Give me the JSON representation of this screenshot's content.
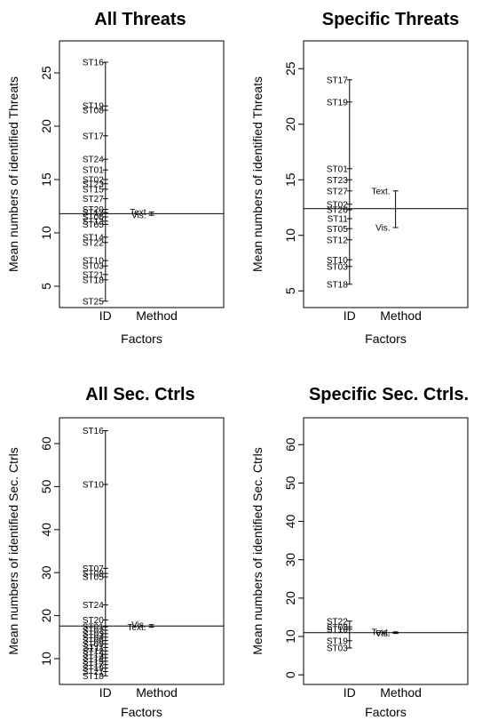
{
  "chart_data": [
    {
      "type": "factor-plot",
      "title": "All Threats",
      "xlabel": "Factors",
      "ylabel": "Mean numbers of identified Threats",
      "categories": [
        "ID",
        "Method"
      ],
      "ylim": [
        3,
        28
      ],
      "yticks": [
        5,
        10,
        15,
        20,
        25
      ],
      "grand_mean": 11.8,
      "factors": [
        {
          "name": "ID",
          "levels": [
            {
              "label": "ST16",
              "value": 26.0
            },
            {
              "label": "ST19",
              "value": 21.9
            },
            {
              "label": "ST08",
              "value": 21.5
            },
            {
              "label": "ST17",
              "value": 19.1
            },
            {
              "label": "ST24",
              "value": 16.9
            },
            {
              "label": "ST01",
              "value": 15.9
            },
            {
              "label": "ST02",
              "value": 15.0
            },
            {
              "label": "ST23",
              "value": 14.6
            },
            {
              "label": "ST15",
              "value": 14.1
            },
            {
              "label": "ST27",
              "value": 13.2
            },
            {
              "label": "ST20",
              "value": 12.2
            },
            {
              "label": "ST12",
              "value": 11.9
            },
            {
              "label": "ST06",
              "value": 11.5
            },
            {
              "label": "ST13",
              "value": 11.1
            },
            {
              "label": "ST05",
              "value": 10.8
            },
            {
              "label": "ST14",
              "value": 9.6
            },
            {
              "label": "ST22",
              "value": 9.1
            },
            {
              "label": "ST10",
              "value": 7.4
            },
            {
              "label": "ST03",
              "value": 6.9
            },
            {
              "label": "ST21",
              "value": 6.1
            },
            {
              "label": "ST18",
              "value": 5.6
            },
            {
              "label": "ST25",
              "value": 3.6
            }
          ]
        },
        {
          "name": "Method",
          "levels": [
            {
              "label": "Text",
              "value": 11.95
            },
            {
              "label": "Vis.",
              "value": 11.65
            }
          ]
        }
      ]
    },
    {
      "type": "factor-plot",
      "title": "Specific Threats",
      "xlabel": "Factors",
      "ylabel": "Mean numbers of identified Threats",
      "categories": [
        "ID",
        "Method"
      ],
      "ylim": [
        3.5,
        27.5
      ],
      "yticks": [
        5,
        10,
        15,
        20,
        25
      ],
      "grand_mean": 12.4,
      "factors": [
        {
          "name": "ID",
          "levels": [
            {
              "label": "ST17",
              "value": 24.0
            },
            {
              "label": "ST19",
              "value": 22.0
            },
            {
              "label": "ST01",
              "value": 16.0
            },
            {
              "label": "ST23",
              "value": 15.0
            },
            {
              "label": "ST27",
              "value": 14.0
            },
            {
              "label": "ST02",
              "value": 12.8
            },
            {
              "label": "ST26",
              "value": 12.3
            },
            {
              "label": "ST11",
              "value": 11.5
            },
            {
              "label": "ST05",
              "value": 10.6
            },
            {
              "label": "ST12",
              "value": 9.6
            },
            {
              "label": "ST10",
              "value": 7.8
            },
            {
              "label": "ST03",
              "value": 7.2
            },
            {
              "label": "ST18",
              "value": 5.6
            }
          ]
        },
        {
          "name": "Method",
          "levels": [
            {
              "label": "Text.",
              "value": 14.0
            },
            {
              "label": "Vis.",
              "value": 10.7
            }
          ]
        }
      ]
    },
    {
      "type": "factor-plot",
      "title": "All Sec. Ctrls",
      "xlabel": "Factors",
      "ylabel": "Mean numbers of identified Sec. Ctrls",
      "categories": [
        "ID",
        "Method"
      ],
      "ylim": [
        4,
        66
      ],
      "yticks": [
        10,
        20,
        30,
        40,
        50,
        60
      ],
      "grand_mean": 17.6,
      "factors": [
        {
          "name": "ID",
          "levels": [
            {
              "label": "ST16",
              "value": 63.0
            },
            {
              "label": "ST10",
              "value": 50.5
            },
            {
              "label": "ST07",
              "value": 31.0
            },
            {
              "label": "ST08",
              "value": 29.8
            },
            {
              "label": "ST05",
              "value": 29.0
            },
            {
              "label": "ST24",
              "value": 22.5
            },
            {
              "label": "ST20",
              "value": 19.0
            },
            {
              "label": "ST01",
              "value": 17.4
            },
            {
              "label": "ST02",
              "value": 16.6
            },
            {
              "label": "ST03",
              "value": 15.8
            },
            {
              "label": "ST04",
              "value": 15.0
            },
            {
              "label": "ST06",
              "value": 14.2
            },
            {
              "label": "ST09",
              "value": 13.4
            },
            {
              "label": "ST11",
              "value": 12.6
            },
            {
              "label": "ST12",
              "value": 11.8
            },
            {
              "label": "ST13",
              "value": 11.0
            },
            {
              "label": "ST14",
              "value": 10.2
            },
            {
              "label": "ST15",
              "value": 9.4
            },
            {
              "label": "ST17",
              "value": 8.6
            },
            {
              "label": "ST19",
              "value": 7.8
            },
            {
              "label": "ST21",
              "value": 7.0
            },
            {
              "label": "ST18",
              "value": 6.0
            }
          ]
        },
        {
          "name": "Method",
          "levels": [
            {
              "label": "Vis.",
              "value": 17.9
            },
            {
              "label": "Text.",
              "value": 17.3
            }
          ]
        }
      ]
    },
    {
      "type": "factor-plot",
      "title": "Specific Sec. Ctrls.",
      "xlabel": "Factors",
      "ylabel": "Mean numbers of identified Sec. Ctrls",
      "categories": [
        "ID",
        "Method"
      ],
      "ylim": [
        -2.5,
        67
      ],
      "yticks": [
        0,
        10,
        20,
        30,
        40,
        50,
        60
      ],
      "grand_mean": 11.0,
      "factors": [
        {
          "name": "ID",
          "levels": [
            {
              "label": "ST22",
              "value": 14.0
            },
            {
              "label": "ST08",
              "value": 12.5
            },
            {
              "label": "ST16",
              "value": 11.9
            },
            {
              "label": "ST19",
              "value": 8.9
            },
            {
              "label": "ST03",
              "value": 7.0
            }
          ]
        },
        {
          "name": "Method",
          "levels": [
            {
              "label": "Text.",
              "value": 11.2
            },
            {
              "label": "Vis.",
              "value": 10.8
            }
          ]
        }
      ]
    }
  ]
}
